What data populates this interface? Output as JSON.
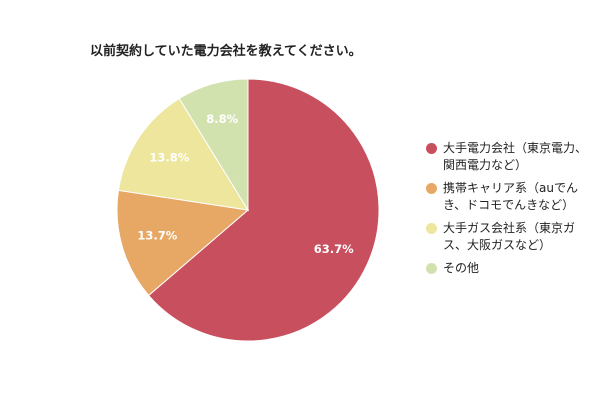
{
  "chart_data": {
    "type": "pie",
    "title": "以前契約していた電力会社を教えてください。",
    "legend_position": "right",
    "slices": [
      {
        "name": "大手電力会社（東京電力、関西電力など）",
        "value": 63.7,
        "label": "63.7%",
        "color": "#c8505e"
      },
      {
        "name": "携帯キャリア系（auでんき、ドコモでんきなど）",
        "value": 13.7,
        "label": "13.7%",
        "color": "#e8a865"
      },
      {
        "name": "大手ガス会社系（東京ガス、大阪ガスなど）",
        "value": 13.8,
        "label": "13.8%",
        "color": "#ede69c"
      },
      {
        "name": "その他",
        "value": 8.8,
        "label": "8.8%",
        "color": "#d2e2ae"
      }
    ]
  }
}
